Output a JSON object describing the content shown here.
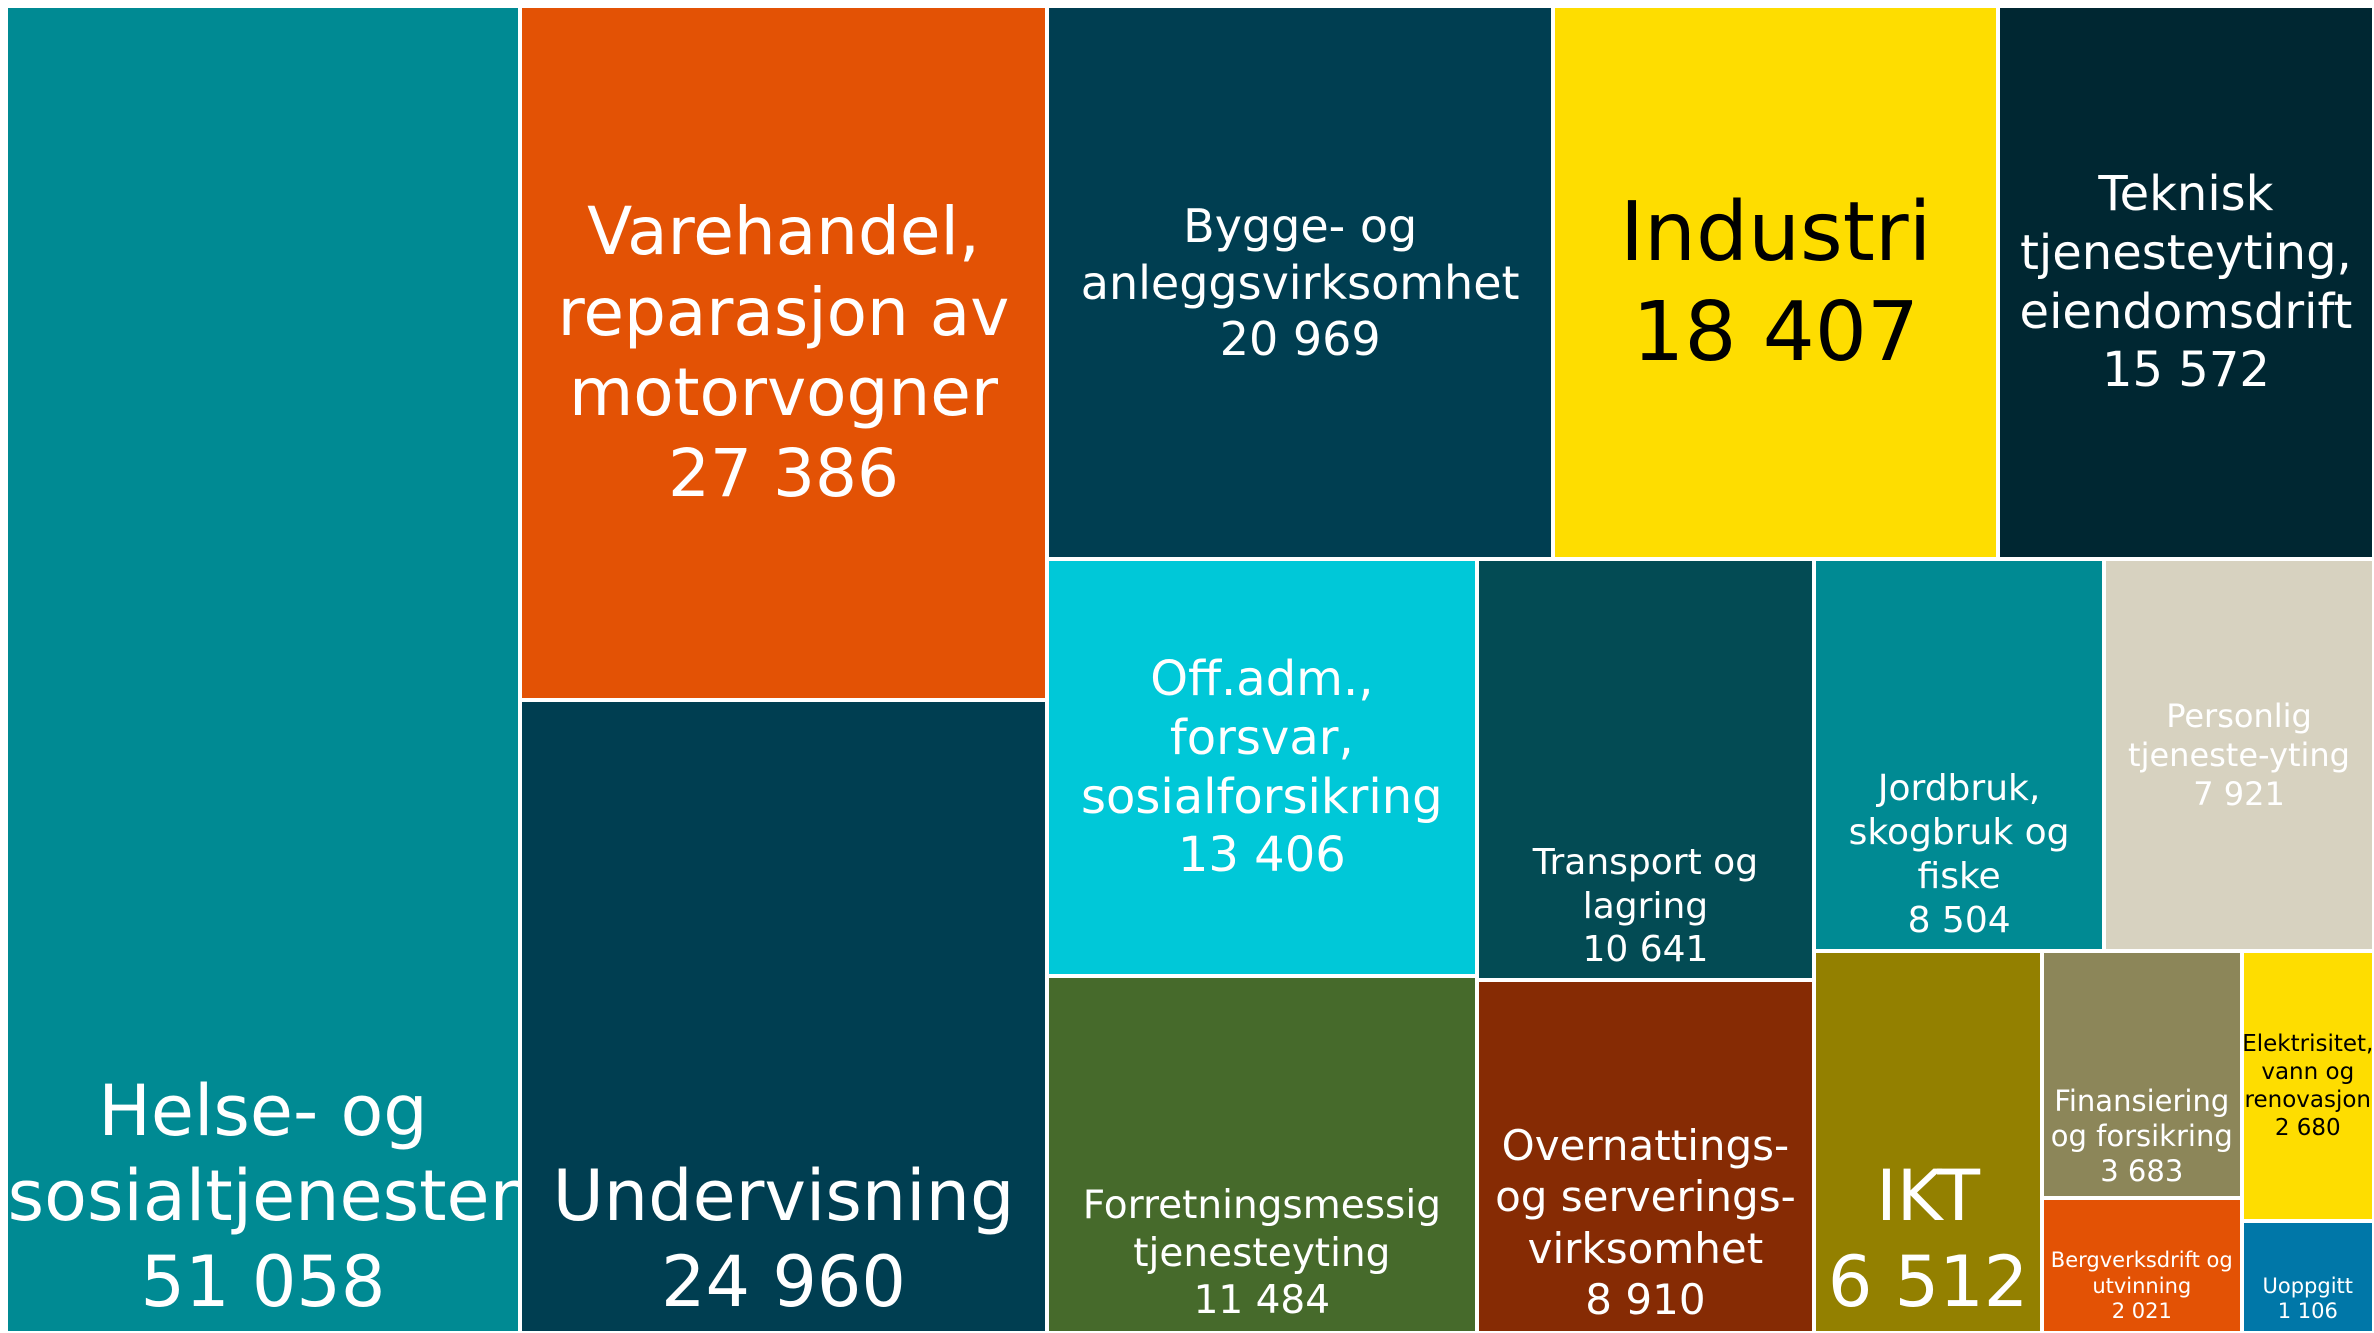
{
  "chart_data": {
    "type": "treemap",
    "categories": [
      "Helse- og sosialtjenester",
      "Varehandel, reparasjon av motorvogner",
      "Undervisning",
      "Bygge- og anleggsvirksomhet",
      "Industri",
      "Teknisk tjenesteyting, eiendomsdrift",
      "Off.adm., forsvar, sosialforsikring",
      "Forretningsmessig tjenesteyting",
      "Transport og lagring",
      "Overnattings- og serverings-virksomhet",
      "Jordbruk, skogbruk og fiske",
      "Personlig tjeneste-yting",
      "IKT",
      "Finansiering og forsikring",
      "Bergverksdrift og utvinning",
      "Elektrisitet, vann og renovasjon",
      "Uoppgitt"
    ],
    "values": [
      51058,
      27386,
      24960,
      20969,
      18407,
      15572,
      13406,
      11484,
      10641,
      8910,
      8504,
      7921,
      6512,
      3683,
      2021,
      2680,
      1106
    ],
    "value_labels": [
      "51 058",
      "27 386",
      "24 960",
      "20 969",
      "18 407",
      "15 572",
      "13 406",
      "11 484",
      "10 641",
      "8 910",
      "8 504",
      "7 921",
      "6 512",
      "3 683",
      "2 021",
      "2 680",
      "1 106"
    ],
    "colors": [
      "#008a93",
      "#e35205",
      "#003e51",
      "#003e51",
      "#fedd00",
      "#002732",
      "#00c8d8",
      "#466a2b",
      "#034b54",
      "#862b04",
      "#008a93",
      "#d7d2c0",
      "#938000",
      "#8c8659",
      "#e35205",
      "#fedd00",
      "#0077a8"
    ]
  }
}
